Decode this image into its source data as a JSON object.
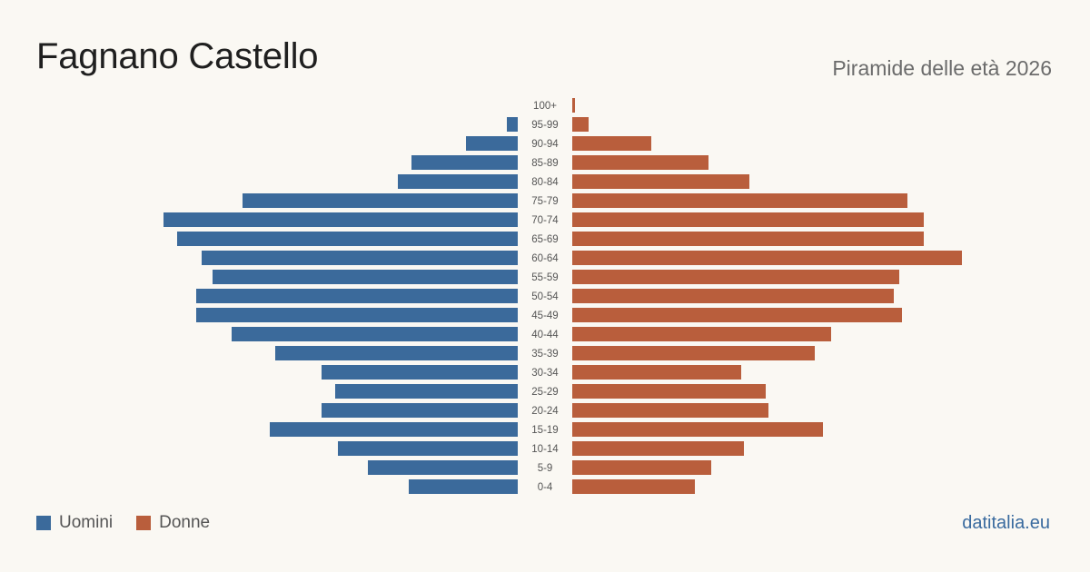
{
  "header": {
    "title": "Fagnano Castello",
    "subtitle": "Piramide delle età 2026"
  },
  "legend": {
    "men_label": "Uomini",
    "women_label": "Donne"
  },
  "footer": {
    "brand": "datitalia.eu"
  },
  "colors": {
    "men": "#3b6a9b",
    "women": "#b95e3c",
    "axis_label": "#555555"
  },
  "chart_data": {
    "type": "bar",
    "orientation": "horizontal-pyramid",
    "categories": [
      "100+",
      "95-99",
      "90-94",
      "85-89",
      "80-84",
      "75-79",
      "70-74",
      "65-69",
      "60-64",
      "55-59",
      "50-54",
      "45-49",
      "40-44",
      "35-39",
      "30-34",
      "25-29",
      "20-24",
      "15-19",
      "10-14",
      "5-9",
      "0-4"
    ],
    "series": [
      {
        "name": "Uomini",
        "values": [
          0,
          4,
          19,
          39,
          44,
          101,
          130,
          125,
          116,
          112,
          118,
          118,
          105,
          89,
          72,
          67,
          72,
          91,
          66,
          55,
          40
        ]
      },
      {
        "name": "Donne",
        "values": [
          1,
          6,
          29,
          50,
          65,
          123,
          129,
          129,
          143,
          120,
          118,
          121,
          95,
          89,
          62,
          71,
          72,
          92,
          63,
          51,
          45
        ]
      }
    ],
    "xlim": [
      0,
      150
    ],
    "grid": false,
    "legend_position": "bottom-left"
  }
}
